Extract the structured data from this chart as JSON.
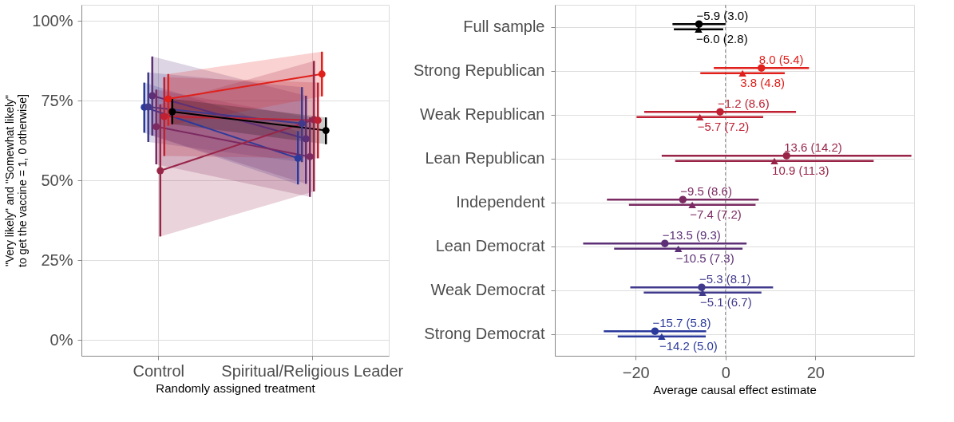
{
  "chart_data": [
    {
      "type": "line",
      "xlabel": "Randomly assigned treatment",
      "ylabel": "\"Very likely\" and \"Somewhat likely\"\nto get the vaccine = 1, 0 otherwise]",
      "categories": [
        "Control",
        "Spiritual/Religious Leader"
      ],
      "ylim": [
        -5,
        105
      ],
      "yticks": [
        {
          "value": 0,
          "label": "0%"
        },
        {
          "value": 25,
          "label": "25%"
        },
        {
          "value": 50,
          "label": "50%"
        },
        {
          "value": 75,
          "label": "75%"
        },
        {
          "value": 100,
          "label": "100%"
        }
      ],
      "grid": true,
      "marker": "circle",
      "series": [
        {
          "color": "#2b3a9b",
          "values": [
            72.9,
            56.9
          ],
          "errors": [
            [
              64.9,
              80.6
            ],
            [
              48.7,
              65.4
            ]
          ],
          "lower": [
            64.9,
            48.7
          ],
          "upper": [
            80.6,
            65.4
          ]
        },
        {
          "color": "#413a8c",
          "values": [
            73.0,
            67.8
          ],
          "errors": [
            [
              62.0,
              83.8
            ],
            [
              55.7,
              79.2
            ]
          ],
          "lower": [
            62.0,
            55.7
          ],
          "upper": [
            83.8,
            79.2
          ]
        },
        {
          "color": "#5c2f76",
          "values": [
            76.5,
            63.0
          ],
          "errors": [
            [
              64.0,
              88.8
            ],
            [
              48.9,
              76.5
            ]
          ],
          "lower": [
            64.0,
            48.9
          ],
          "upper": [
            88.8,
            76.5
          ]
        },
        {
          "color": "#7b2a62",
          "values": [
            66.8,
            57.4
          ],
          "errors": [
            [
              55.0,
              78.4
            ],
            [
              44.8,
              69.7
            ]
          ],
          "lower": [
            55.0,
            44.8
          ],
          "upper": [
            78.4,
            69.7
          ]
        },
        {
          "color": "#982548",
          "values": [
            53.0,
            69.0
          ],
          "errors": [
            [
              32.4,
              73.8
            ],
            [
              46.5,
              87.4
            ]
          ],
          "lower": [
            32.4,
            46.5
          ],
          "upper": [
            73.8,
            87.4
          ]
        },
        {
          "color": "#bf2133",
          "values": [
            70.0,
            68.8
          ],
          "errors": [
            [
              57.6,
              82.3
            ],
            [
              56.9,
              80.6
            ]
          ],
          "lower": [
            57.6,
            56.9
          ],
          "upper": [
            82.3,
            80.6
          ]
        },
        {
          "color": "#e0201b",
          "values": [
            75.5,
            83.3
          ],
          "errors": [
            [
              67.1,
              83.3
            ],
            [
              76.3,
              90.3
            ]
          ],
          "lower": [
            67.1,
            76.3
          ],
          "upper": [
            83.3,
            90.3
          ]
        },
        {
          "color": "#000000",
          "values": [
            71.5,
            65.6
          ],
          "errors": [
            [
              67.6,
              75.5
            ],
            [
              61.3,
              69.7
            ]
          ],
          "lower": [
            67.6,
            61.3
          ],
          "upper": [
            75.5,
            69.7
          ]
        }
      ]
    },
    {
      "type": "scatter",
      "orientation": "horizontal",
      "xlabel": "Average causal effect estimate",
      "categories": [
        "Full sample",
        "Strong Republican",
        "Weak Republican",
        "Lean Republican",
        "Independent",
        "Lean Democrat",
        "Weak Democrat",
        "Strong Democrat"
      ],
      "xlim": [
        -38,
        42
      ],
      "xticks": [
        {
          "value": -20,
          "label": "−20"
        },
        0,
        20
      ],
      "grid": true,
      "ref_lines": [
        {
          "axis": "x",
          "value": 0,
          "color": "#808080",
          "line_style": "dashed"
        }
      ],
      "series": [
        {
          "marker": "triangle",
          "colors": [
            "#000000",
            "#e0201b",
            "#bf2133",
            "#982548",
            "#7b2a62",
            "#5c2f76",
            "#413a8c",
            "#2b3a9b"
          ],
          "values": [
            -6.0,
            3.8,
            -5.7,
            10.9,
            -7.4,
            -10.5,
            -5.1,
            -14.2
          ],
          "errors": [
            5.5,
            9.4,
            14.1,
            22.1,
            14.1,
            14.3,
            13.1,
            9.8
          ],
          "value_labels": [
            "−6.0 (2.8)",
            "3.8 (4.8)",
            "−5.7 (7.2)",
            "10.9 (11.3)",
            "−7.4 (7.2)",
            "−10.5 (7.3)",
            "−5.1 (6.7)",
            "−14.2 (5.0)"
          ]
        },
        {
          "marker": "circle",
          "colors": [
            "#000000",
            "#e0201b",
            "#bf2133",
            "#982548",
            "#7b2a62",
            "#5c2f76",
            "#413a8c",
            "#2b3a9b"
          ],
          "values": [
            -5.9,
            8.0,
            -1.2,
            13.6,
            -9.5,
            -13.5,
            -5.3,
            -15.7
          ],
          "errors": [
            5.9,
            10.6,
            16.9,
            27.8,
            16.9,
            18.2,
            15.9,
            11.4
          ],
          "value_labels": [
            "−5.9 (3.0)",
            "8.0 (5.4)",
            "−1.2 (8.6)",
            "13.6 (14.2)",
            "−9.5 (8.6)",
            "−13.5 (9.3)",
            "−5.3 (8.1)",
            "−15.7 (5.8)"
          ]
        }
      ]
    }
  ]
}
